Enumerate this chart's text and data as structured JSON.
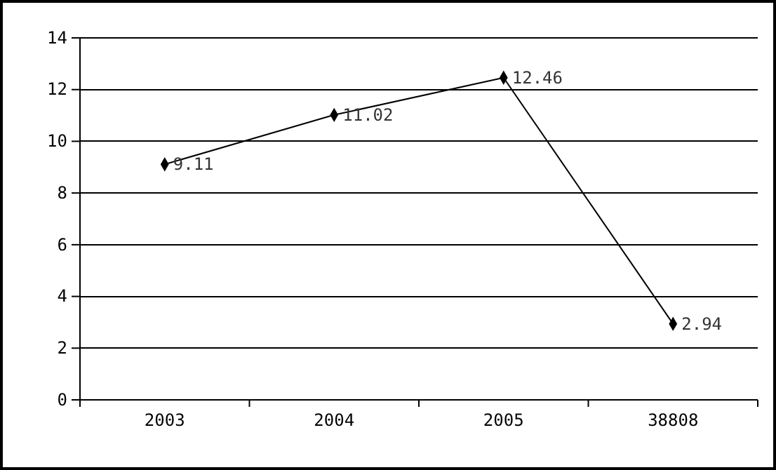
{
  "chart_data": {
    "type": "line",
    "categories": [
      "2003",
      "2004",
      "2005",
      "38808"
    ],
    "series": [
      {
        "color": "#000000",
        "values": [
          9.11,
          11.02,
          12.46,
          2.94
        ]
      }
    ],
    "ylim": [
      0,
      14
    ],
    "yticks": [
      0,
      2,
      4,
      6,
      8,
      10,
      12,
      14
    ],
    "grid": "y",
    "marker": "diamond",
    "line_style": "solid",
    "data_labels": true
  }
}
